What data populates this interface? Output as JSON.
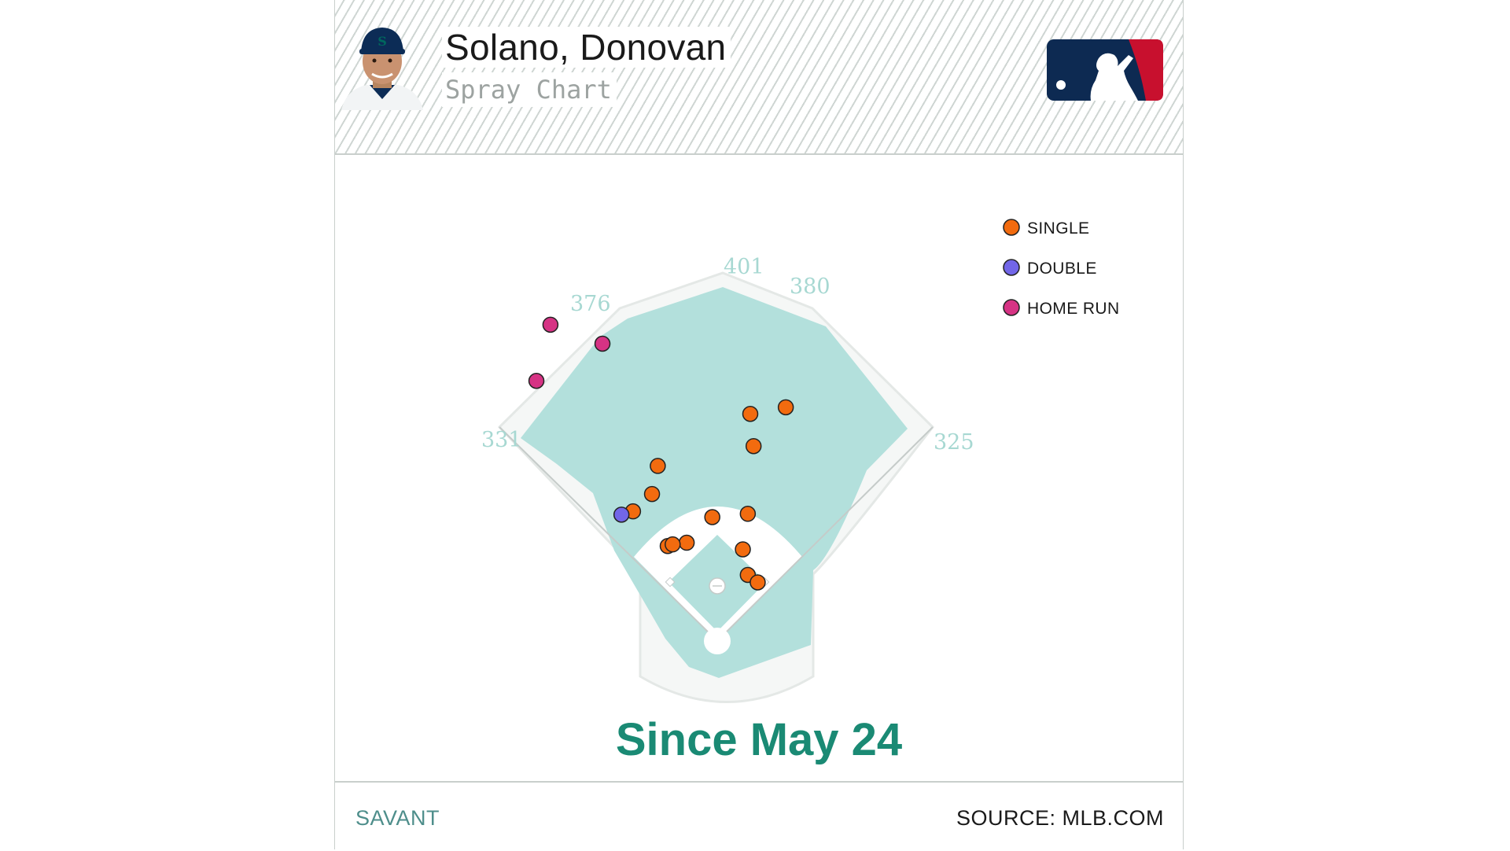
{
  "header": {
    "player_name": "Solano, Donovan",
    "subtitle": "Spray Chart"
  },
  "footer": {
    "left_label": "SAVANT",
    "right_label": "SOURCE: MLB.COM"
  },
  "caption": "Since May 24",
  "icons": {
    "player_photo": "player-headshot-icon",
    "logo": "mlb-logo-icon"
  },
  "colors": {
    "single": "#f26b0f",
    "double": "#7266e8",
    "home_run": "#d63384",
    "field": "#b3e0dc",
    "caption": "#1a8a74",
    "logo_blue": "#0d2a52",
    "logo_red": "#c8102e"
  },
  "chart_data": {
    "type": "scatter",
    "title": "Spray Chart",
    "legend_position": "top-right",
    "legend": [
      "SINGLE",
      "DOUBLE",
      "HOME RUN"
    ],
    "fence_distances": [
      "331",
      "376",
      "401",
      "380",
      "325"
    ],
    "series": [
      {
        "name": "SINGLE",
        "color": "#f26b0f",
        "points": [
          {
            "x": 40,
            "y": 275
          },
          {
            "x": 83,
            "y": 283
          },
          {
            "x": -72,
            "y": 212
          },
          {
            "x": 44,
            "y": 236
          },
          {
            "x": -79,
            "y": 178
          },
          {
            "x": -102,
            "y": 157
          },
          {
            "x": -6,
            "y": 150
          },
          {
            "x": 37,
            "y": 154
          },
          {
            "x": -37,
            "y": 119
          },
          {
            "x": 31,
            "y": 111
          },
          {
            "x": -60,
            "y": 115
          },
          {
            "x": -54,
            "y": 117
          },
          {
            "x": 37,
            "y": 80
          },
          {
            "x": 49,
            "y": 71
          }
        ]
      },
      {
        "name": "DOUBLE",
        "color": "#7266e8",
        "points": [
          {
            "x": -116,
            "y": 153
          }
        ]
      },
      {
        "name": "HOME RUN",
        "color": "#d63384",
        "points": [
          {
            "x": -202,
            "y": 383
          },
          {
            "x": -139,
            "y": 360
          },
          {
            "x": -219,
            "y": 315
          }
        ]
      }
    ]
  }
}
